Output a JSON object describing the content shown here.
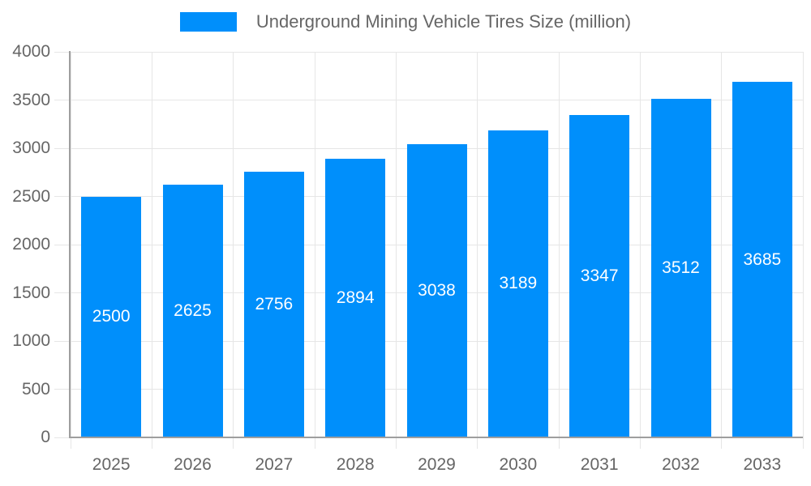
{
  "legend": {
    "label": "Underground Mining Vehicle Tires Size (million)"
  },
  "colors": {
    "bar": "#008FFB",
    "grid_line": "#e6e6e6",
    "axis_line": "#9e9e9e",
    "axis_text": "#666666",
    "value_text": "#ffffff"
  },
  "chart_data": {
    "type": "bar",
    "title": "Underground Mining Vehicle Tires Size (million)",
    "categories": [
      "2025",
      "2026",
      "2027",
      "2028",
      "2029",
      "2030",
      "2031",
      "2032",
      "2033"
    ],
    "values": [
      2500,
      2625,
      2756,
      2894,
      3038,
      3189,
      3347,
      3512,
      3685
    ],
    "xlabel": "",
    "ylabel": "",
    "ylim": [
      0,
      4000
    ],
    "ytick_step": 500,
    "grid": true,
    "legend_position": "top",
    "value_label_position": "inside-center"
  }
}
